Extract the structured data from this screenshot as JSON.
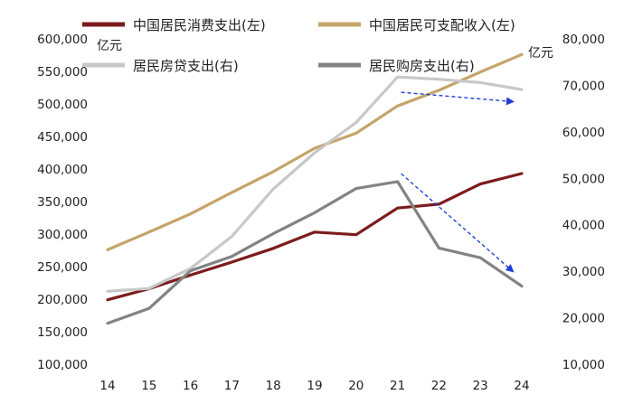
{
  "chart_data": {
    "type": "line",
    "categories": [
      "14",
      "15",
      "16",
      "17",
      "18",
      "19",
      "20",
      "21",
      "22",
      "23",
      "24"
    ],
    "y_left": {
      "unit": "亿元",
      "min": 100000,
      "max": 600000,
      "step": 50000
    },
    "y_right": {
      "unit": "亿元",
      "min": 10000,
      "max": 80000,
      "step": 10000
    },
    "grid": false,
    "legend_position": "top",
    "series": [
      {
        "name": "中国居民消费支出(左)",
        "axis": "left",
        "color": "#7b1c1c",
        "values": [
          199000,
          216000,
          237000,
          257000,
          278000,
          303000,
          299000,
          340000,
          346000,
          377000,
          393000
        ]
      },
      {
        "name": "中国居民可支配收入(左)",
        "axis": "left",
        "color": "#c5a46a",
        "values": [
          276000,
          303000,
          331000,
          364000,
          396000,
          432000,
          455000,
          497000,
          521000,
          549000,
          576000
        ]
      },
      {
        "name": "居民房贷支出(右)",
        "axis": "right",
        "color": "#c8c8c8",
        "values": [
          25700,
          26300,
          30600,
          37500,
          47700,
          55500,
          62000,
          71800,
          71300,
          70600,
          69100
        ]
      },
      {
        "name": "居民购房支出(右)",
        "axis": "right",
        "color": "#838383",
        "values": [
          18800,
          22000,
          30100,
          33200,
          38100,
          42600,
          47800,
          49300,
          35000,
          32900,
          26800
        ]
      }
    ],
    "annotations": [
      {
        "type": "dashed-arrow",
        "color": "#1f3fd6",
        "from": {
          "x": "21",
          "y_right": 68500
        },
        "to": {
          "x": "24",
          "y_right": 66500
        }
      },
      {
        "type": "dashed-arrow",
        "color": "#1f3fd6",
        "from": {
          "x": "21",
          "y_right": 51000
        },
        "to": {
          "x": "24",
          "y_right": 30000
        }
      }
    ]
  }
}
